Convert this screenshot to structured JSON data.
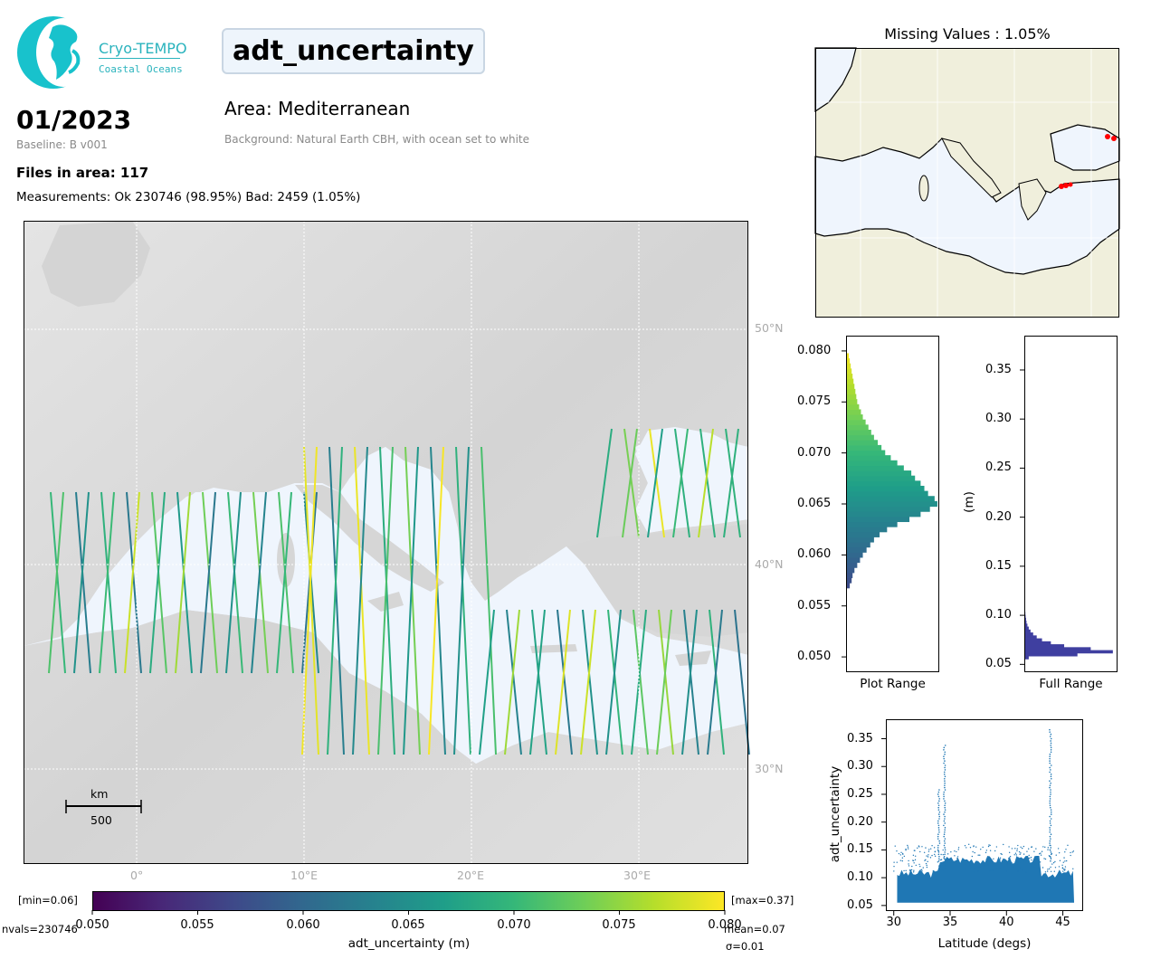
{
  "logo": {
    "name": "Cryo-TEMPO",
    "subtitle": "Coastal Oceans"
  },
  "header": {
    "variable": "adt_uncertainty",
    "date": "01/2023",
    "baseline": "Baseline: B v001",
    "files": "Files in area: 117",
    "measurements": "Measurements: Ok 230746 (98.95%) Bad: 2459 (1.05%)",
    "area": "Area: Mediterranean",
    "background": "Background: Natural Earth CBH, with ocean set to white"
  },
  "main_map": {
    "lat_labels": [
      "50°N",
      "40°N",
      "30°N"
    ],
    "lon_labels": [
      "0°",
      "10°E",
      "20°E",
      "30°E"
    ],
    "scale_unit": "km",
    "scale_value": "500"
  },
  "colorbar": {
    "min_label": "[min=0.06]",
    "max_label": "[max=0.37]",
    "ticks": [
      "0.050",
      "0.055",
      "0.060",
      "0.065",
      "0.070",
      "0.075",
      "0.080"
    ],
    "label": "adt_uncertainty (m)",
    "nvals": "nvals=230746",
    "mean": "mean=0.07",
    "sigma": "σ=0.01"
  },
  "missing_map": {
    "title": "Missing Values : 1.05%"
  },
  "hist_plot_range": {
    "xlabel": "Plot Range",
    "ticks": [
      "0.080",
      "0.075",
      "0.070",
      "0.065",
      "0.060",
      "0.055",
      "0.050"
    ],
    "ylim": [
      0.0485,
      0.0815
    ],
    "bins": [
      {
        "y": 0.057,
        "count": 0.04
      },
      {
        "y": 0.0575,
        "count": 0.06
      },
      {
        "y": 0.058,
        "count": 0.07
      },
      {
        "y": 0.0585,
        "count": 0.09
      },
      {
        "y": 0.059,
        "count": 0.12
      },
      {
        "y": 0.0595,
        "count": 0.15
      },
      {
        "y": 0.06,
        "count": 0.18
      },
      {
        "y": 0.0605,
        "count": 0.22
      },
      {
        "y": 0.061,
        "count": 0.26
      },
      {
        "y": 0.0615,
        "count": 0.3
      },
      {
        "y": 0.062,
        "count": 0.36
      },
      {
        "y": 0.0625,
        "count": 0.44
      },
      {
        "y": 0.063,
        "count": 0.55
      },
      {
        "y": 0.0635,
        "count": 0.68
      },
      {
        "y": 0.064,
        "count": 0.8
      },
      {
        "y": 0.0645,
        "count": 0.9
      },
      {
        "y": 0.065,
        "count": 0.98
      },
      {
        "y": 0.0655,
        "count": 0.95
      },
      {
        "y": 0.066,
        "count": 0.88
      },
      {
        "y": 0.0665,
        "count": 0.84
      },
      {
        "y": 0.067,
        "count": 0.8
      },
      {
        "y": 0.0675,
        "count": 0.74
      },
      {
        "y": 0.068,
        "count": 0.7
      },
      {
        "y": 0.0685,
        "count": 0.62
      },
      {
        "y": 0.069,
        "count": 0.55
      },
      {
        "y": 0.0695,
        "count": 0.48
      },
      {
        "y": 0.07,
        "count": 0.42
      },
      {
        "y": 0.0705,
        "count": 0.38
      },
      {
        "y": 0.071,
        "count": 0.34
      },
      {
        "y": 0.0715,
        "count": 0.3
      },
      {
        "y": 0.072,
        "count": 0.27
      },
      {
        "y": 0.0725,
        "count": 0.24
      },
      {
        "y": 0.073,
        "count": 0.21
      },
      {
        "y": 0.0735,
        "count": 0.18
      },
      {
        "y": 0.074,
        "count": 0.16
      },
      {
        "y": 0.0745,
        "count": 0.14
      },
      {
        "y": 0.075,
        "count": 0.12
      },
      {
        "y": 0.0755,
        "count": 0.11
      },
      {
        "y": 0.076,
        "count": 0.1
      },
      {
        "y": 0.0765,
        "count": 0.09
      },
      {
        "y": 0.077,
        "count": 0.08
      },
      {
        "y": 0.0775,
        "count": 0.07
      },
      {
        "y": 0.078,
        "count": 0.06
      },
      {
        "y": 0.0785,
        "count": 0.05
      },
      {
        "y": 0.079,
        "count": 0.04
      },
      {
        "y": 0.0795,
        "count": 0.03
      }
    ]
  },
  "hist_full_range": {
    "xlabel": "Full Range",
    "ylabel": "(m)",
    "ticks": [
      "0.35",
      "0.30",
      "0.25",
      "0.20",
      "0.15",
      "0.10",
      "0.05"
    ],
    "ylim": [
      0.042,
      0.385
    ],
    "bins": [
      {
        "y": 0.057,
        "count": 0.05
      },
      {
        "y": 0.06,
        "count": 0.6
      },
      {
        "y": 0.063,
        "count": 1.0
      },
      {
        "y": 0.066,
        "count": 0.75
      },
      {
        "y": 0.069,
        "count": 0.45
      },
      {
        "y": 0.072,
        "count": 0.3
      },
      {
        "y": 0.075,
        "count": 0.2
      },
      {
        "y": 0.078,
        "count": 0.14
      },
      {
        "y": 0.081,
        "count": 0.1
      },
      {
        "y": 0.084,
        "count": 0.07
      },
      {
        "y": 0.087,
        "count": 0.05
      },
      {
        "y": 0.09,
        "count": 0.035
      },
      {
        "y": 0.093,
        "count": 0.025
      },
      {
        "y": 0.096,
        "count": 0.02
      },
      {
        "y": 0.099,
        "count": 0.015
      },
      {
        "y": 0.102,
        "count": 0.012
      },
      {
        "y": 0.105,
        "count": 0.01
      },
      {
        "y": 0.108,
        "count": 0.008
      },
      {
        "y": 0.111,
        "count": 0.006
      }
    ]
  },
  "scatter": {
    "xlabel": "Latitude (degs)",
    "ylabel": "adt_uncertainty",
    "xticks": [
      "30",
      "35",
      "40",
      "45"
    ],
    "yticks": [
      "0.35",
      "0.30",
      "0.25",
      "0.20",
      "0.15",
      "0.10",
      "0.05"
    ],
    "xlim": [
      29.3,
      46.8
    ],
    "ylim": [
      0.04,
      0.385
    ],
    "spikes": [
      {
        "lat": 34.0,
        "max": 0.26
      },
      {
        "lat": 34.5,
        "max": 0.34
      },
      {
        "lat": 43.9,
        "max": 0.37
      }
    ],
    "color": "#1f77b4"
  },
  "colors": {
    "ocean": "#eff5fd",
    "land_shade": "#d9d9d9",
    "beige": "#f0efdc",
    "hist_full": "#3f3fa0"
  }
}
